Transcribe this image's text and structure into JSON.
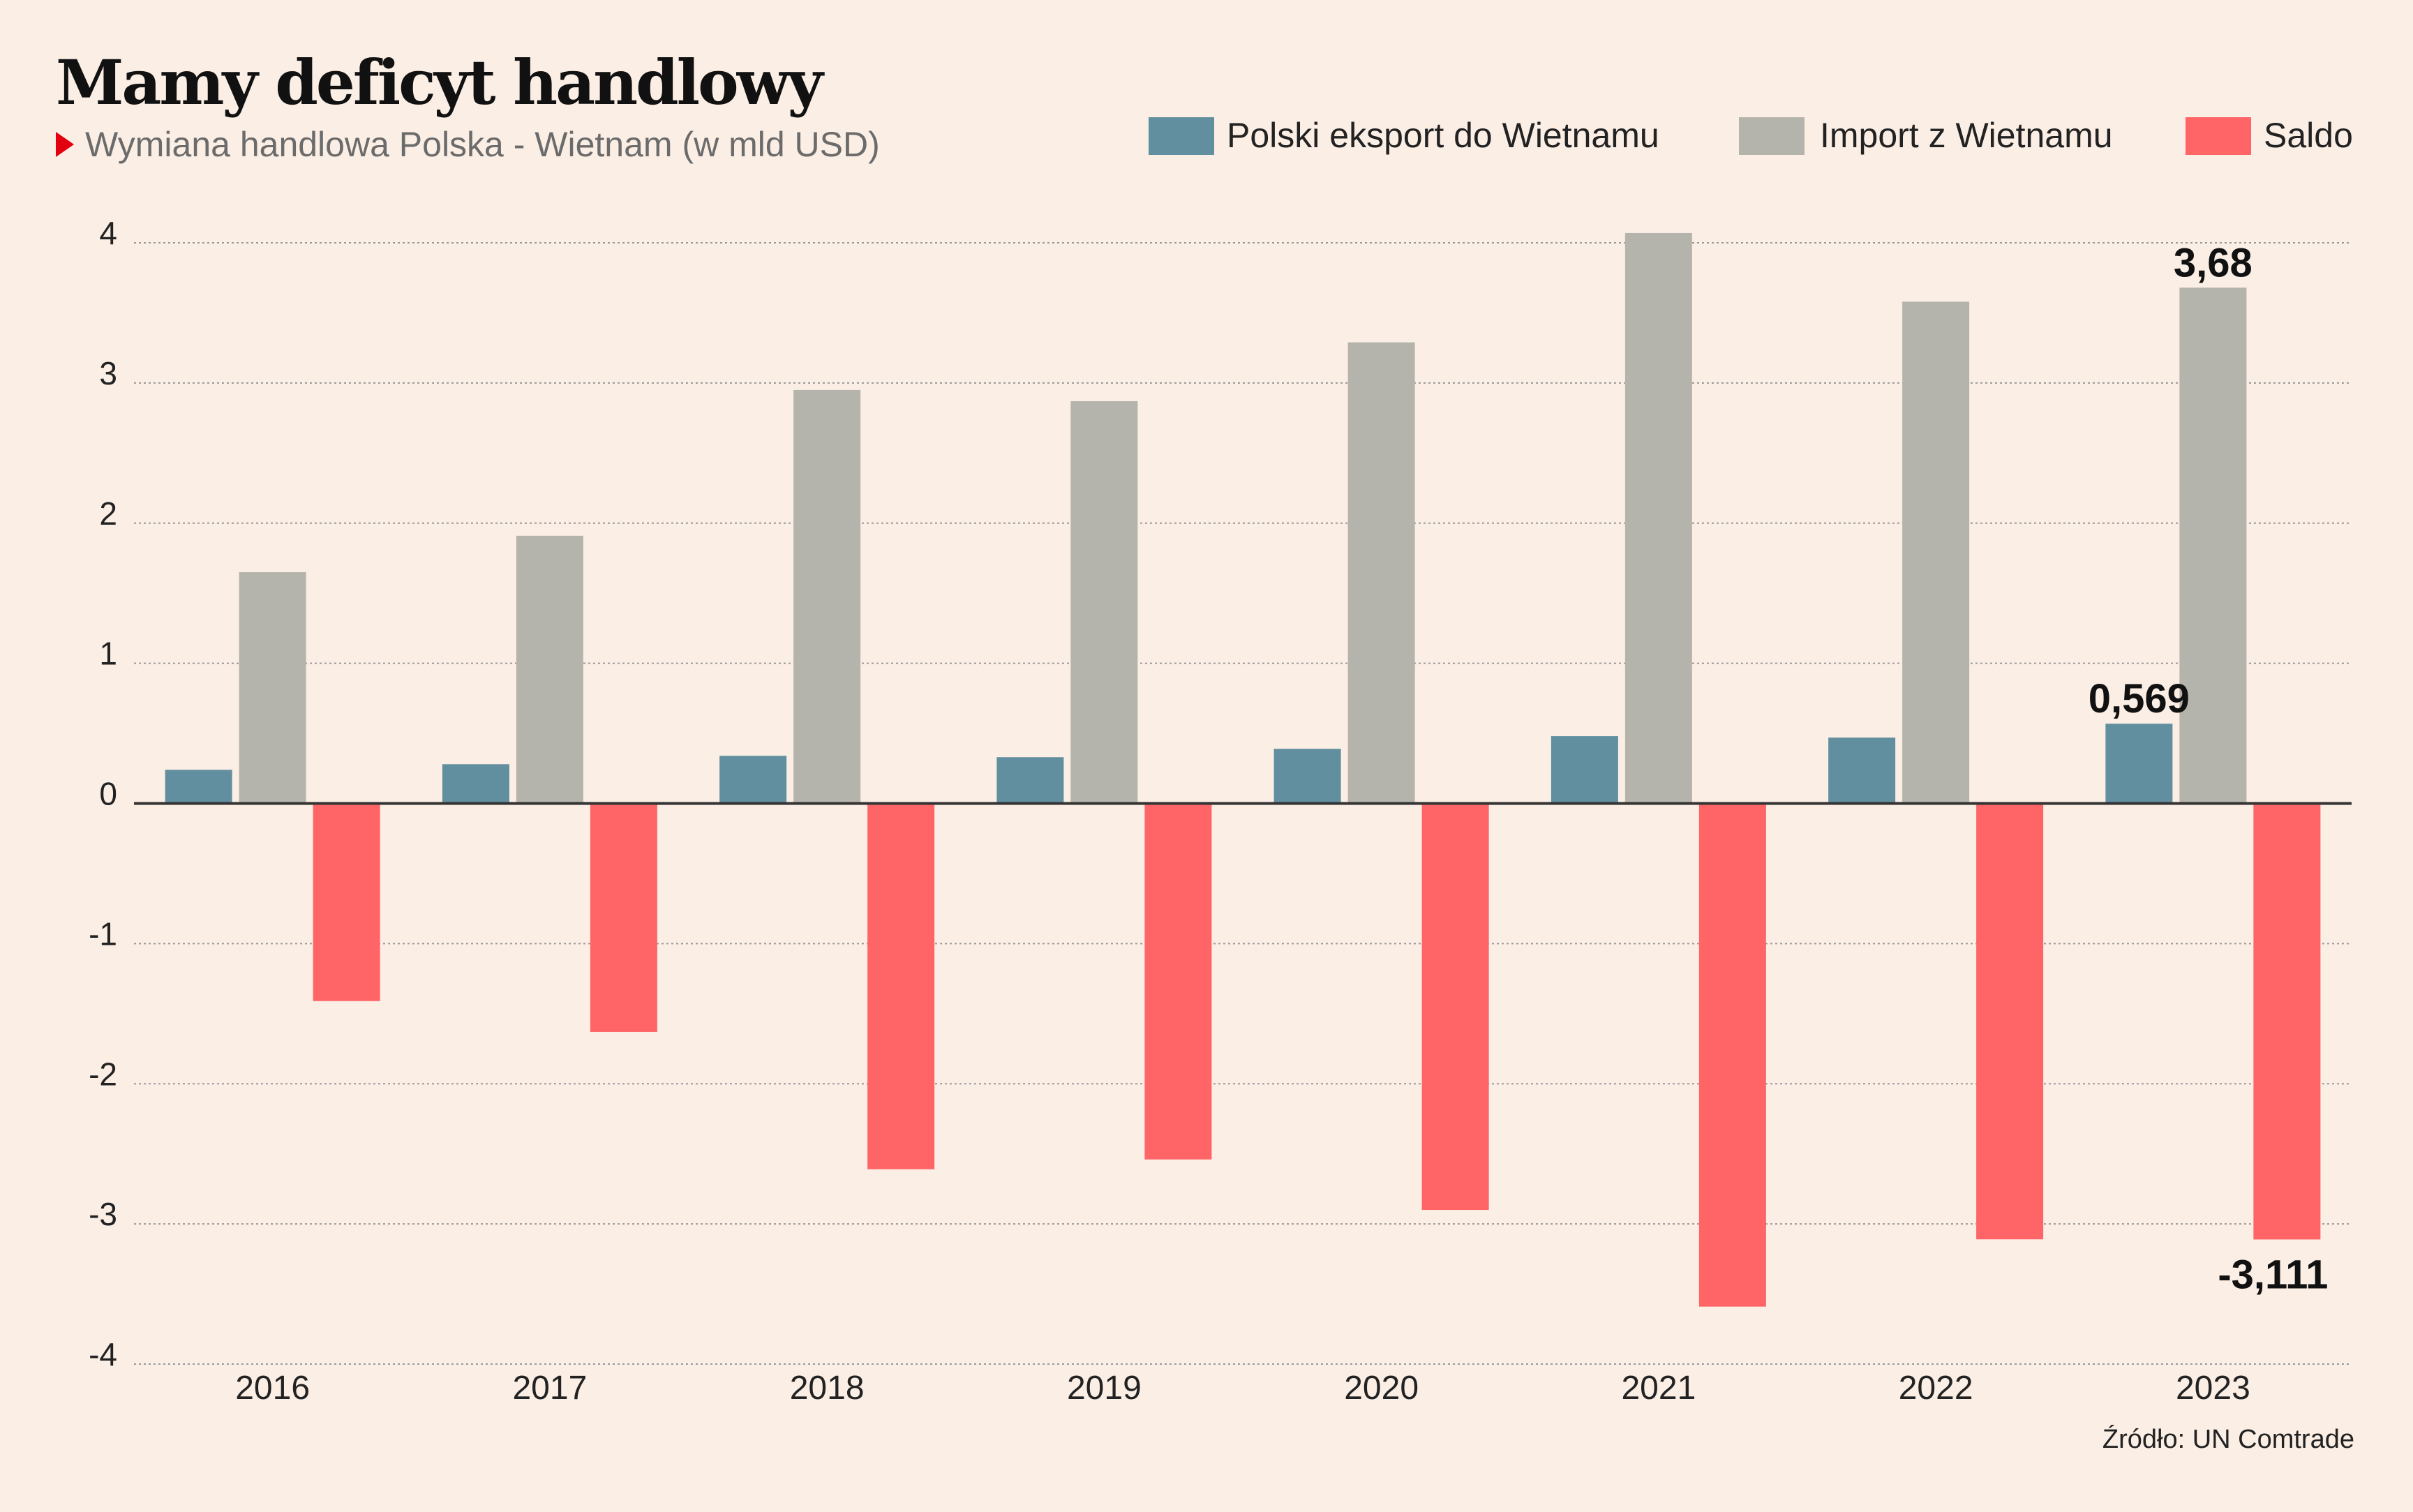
{
  "title": "Mamy deficyt handlowy",
  "subtitle": "Wymiana handlowa Polska - Wietnam (w mld USD)",
  "source": "Źródło: UN Comtrade",
  "colors": {
    "background": "#fbeee5",
    "export": "#628f9f",
    "import": "#b5b4ac",
    "balance": "#ff6467",
    "grid": "#999999",
    "axis": "#333333"
  },
  "chart_data": {
    "type": "bar",
    "title": "Mamy deficyt handlowy",
    "subtitle": "Wymiana handlowa Polska - Wietnam (w mld USD)",
    "xlabel": "",
    "ylabel": "",
    "categories": [
      "2016",
      "2017",
      "2018",
      "2019",
      "2020",
      "2021",
      "2022",
      "2023"
    ],
    "series": [
      {
        "name": "Polski eksport do Wietnamu",
        "color": "#628f9f",
        "values": [
          0.24,
          0.28,
          0.34,
          0.33,
          0.39,
          0.48,
          0.47,
          0.569
        ]
      },
      {
        "name": "Import z Wietnamu",
        "color": "#b5b4ac",
        "values": [
          1.65,
          1.91,
          2.95,
          2.87,
          3.29,
          4.07,
          3.58,
          3.68
        ]
      },
      {
        "name": "Saldo",
        "color": "#ff6467",
        "values": [
          -1.41,
          -1.63,
          -2.61,
          -2.54,
          -2.9,
          -3.59,
          -3.11,
          -3.111
        ]
      }
    ],
    "annotations": [
      {
        "series": "Import z Wietnamu",
        "category": "2023",
        "text": "3,68"
      },
      {
        "series": "Polski eksport do Wietnamu",
        "category": "2023",
        "text": "0,569"
      },
      {
        "series": "Saldo",
        "category": "2023",
        "text": "-3,111"
      }
    ],
    "ylim": [
      -4,
      4
    ],
    "yticks": [
      4,
      3,
      2,
      1,
      0,
      -1,
      -2,
      -3,
      -4
    ],
    "ytick_labels": [
      "4",
      "3",
      "2",
      "1",
      "0",
      "-1",
      "-2",
      "-3",
      "-4"
    ],
    "grid": true,
    "legend_position": "top-right"
  }
}
